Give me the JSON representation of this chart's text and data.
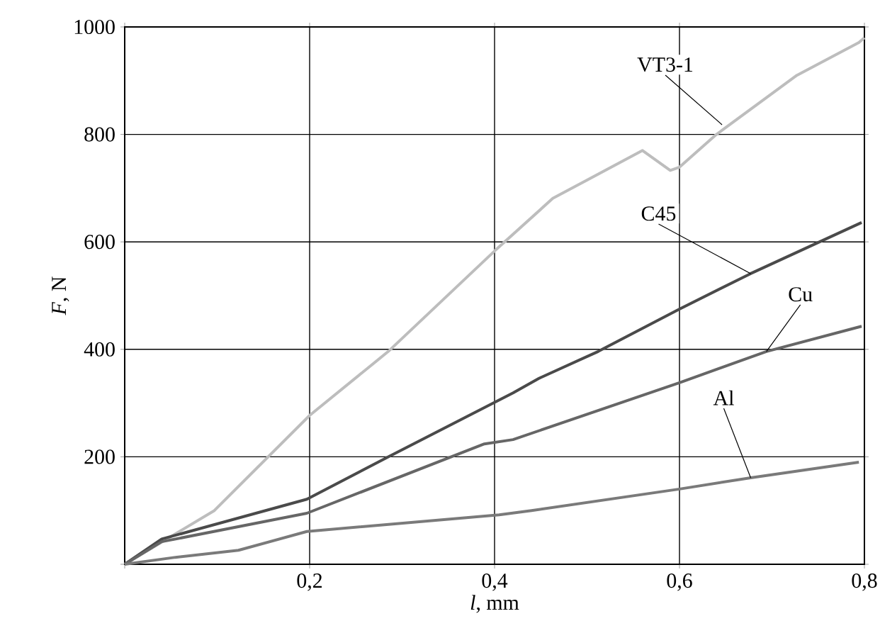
{
  "chart_data": {
    "type": "line",
    "xlabel": "*l*, mm",
    "ylabel": "*F*, N",
    "xlim": [
      0,
      0.8
    ],
    "ylim": [
      0,
      1000
    ],
    "xticks": [
      {
        "value": 0,
        "label": null
      },
      {
        "value": 0.2,
        "label": "0,2"
      },
      {
        "value": 0.4,
        "label": "0,4"
      },
      {
        "value": 0.6,
        "label": "0,6"
      },
      {
        "value": 0.8,
        "label": "0,8"
      }
    ],
    "yticks": [
      {
        "value": 0,
        "label": null
      },
      200,
      400,
      600,
      800,
      1000
    ],
    "grid": true,
    "marker": "none",
    "line_style": "solid",
    "series": [
      {
        "color": "#bdbdbd",
        "x": [
          0,
          0.097,
          0.2,
          0.285,
          0.4,
          0.463,
          0.56,
          0.59,
          0.6,
          0.64,
          0.727,
          0.794,
          0.8
        ],
        "values": [
          0,
          100,
          277,
          396,
          583,
          681,
          770,
          733,
          739,
          800,
          910,
          971,
          980
        ]
      },
      {
        "color": "#4a4a4a",
        "x": [
          0,
          0.04,
          0.197,
          0.285,
          0.42,
          0.448,
          0.512,
          0.6,
          0.677,
          0.797
        ],
        "values": [
          0,
          47,
          121,
          200,
          319,
          346,
          396,
          475,
          541,
          636
        ]
      },
      {
        "color": "#666666",
        "x": [
          0,
          0.04,
          0.197,
          0.389,
          0.42,
          0.6,
          0.694,
          0.797
        ],
        "values": [
          0,
          42,
          95,
          224,
          232,
          338,
          396,
          443
        ]
      },
      {
        "color": "#7a7a7a",
        "x": [
          0,
          0.055,
          0.123,
          0.197,
          0.405,
          0.44,
          0.6,
          0.677,
          0.794
        ],
        "values": [
          0,
          13,
          26,
          61,
          92,
          100,
          140,
          161,
          190
        ]
      }
    ],
    "annotations": [
      {
        "text": "VT3-1",
        "x": 0.646,
        "y": 818
      },
      {
        "text": "C45",
        "x": 0.677,
        "y": 541
      },
      {
        "text": "Cu",
        "x": 0.694,
        "y": 396
      },
      {
        "text": "Al",
        "x": 0.677,
        "y": 161
      }
    ]
  }
}
